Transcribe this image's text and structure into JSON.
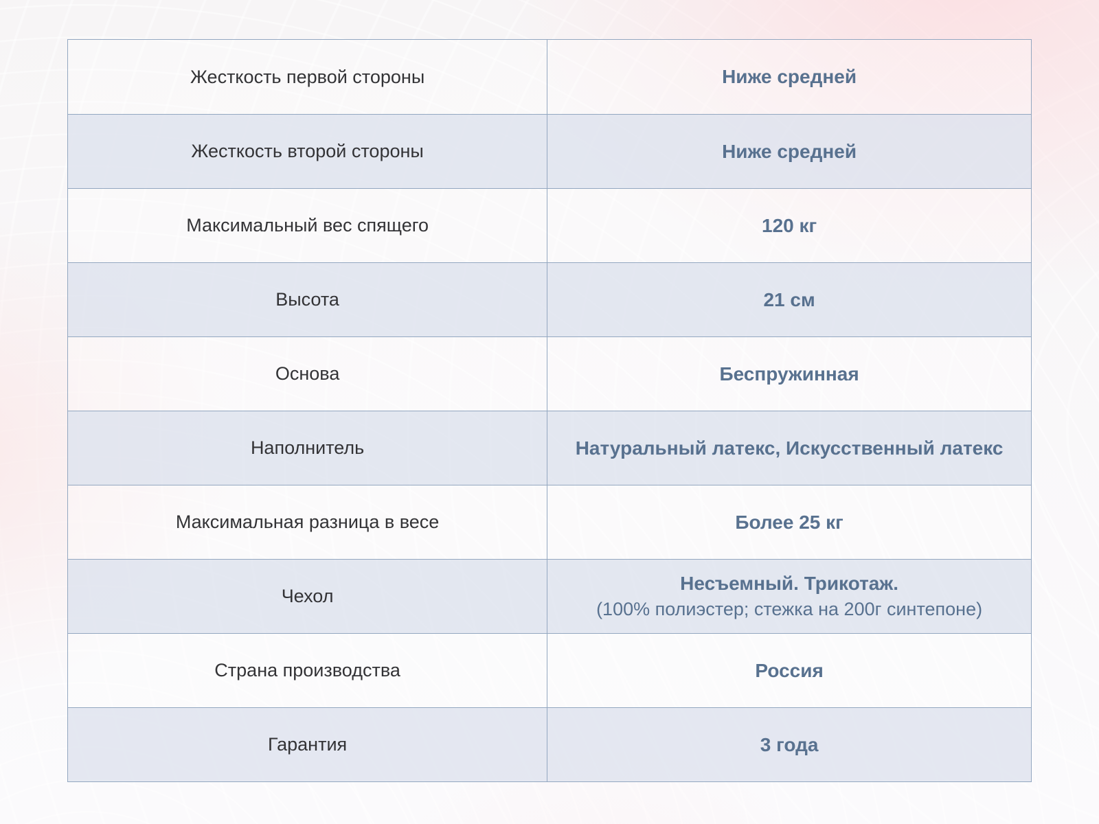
{
  "colors": {
    "border-color": "#93a7c0",
    "label-text": "#333336",
    "value-text": "#58718f",
    "row-even-bg": "rgba(222,227,238,0.82)",
    "row-odd-bg": "rgba(255,255,255,0.30)",
    "page-pink": "#fce4e6",
    "page-base": "#f8f6f7"
  },
  "table": {
    "rows": [
      {
        "label": "Жесткость первой стороны",
        "value": "Ниже средней"
      },
      {
        "label": "Жесткость второй стороны",
        "value": "Ниже средней"
      },
      {
        "label": "Максимальный вес спящего",
        "value": "120 кг"
      },
      {
        "label": "Высота",
        "value": "21 см"
      },
      {
        "label": "Основа",
        "value": "Беспружинная"
      },
      {
        "label": "Наполнитель",
        "value": "Натуральный латекс, Искусственный латекс"
      },
      {
        "label": "Максимальная разница в весе",
        "value": "Более 25 кг"
      },
      {
        "label": "Чехол",
        "value": "Несъемный. Трикотаж.",
        "value_secondary": "(100% полиэстер; стежка на 200г синтепоне)"
      },
      {
        "label": "Страна производства",
        "value": "Россия"
      },
      {
        "label": "Гарантия",
        "value": "3 года"
      }
    ]
  }
}
